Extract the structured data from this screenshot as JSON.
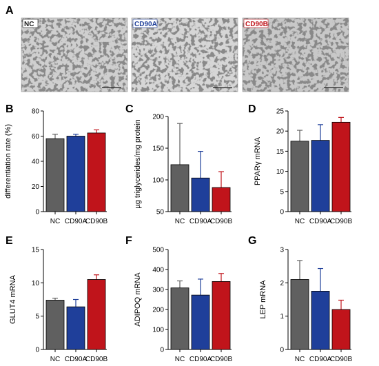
{
  "panel_A": {
    "label": "A",
    "images": [
      {
        "tag": "NC",
        "tag_color": "#1a1a1a"
      },
      {
        "tag": "CD90A",
        "tag_color": "#1f3f9a"
      },
      {
        "tag": "CD90B",
        "tag_color": "#c0141b"
      }
    ]
  },
  "colors": {
    "NC": "#606060",
    "CD90A": "#1f3f9a",
    "CD90B": "#c0141b"
  },
  "chart_data": [
    {
      "panel": "B",
      "type": "bar",
      "ylabel": "differentiation rate (%)",
      "categories": [
        "NC",
        "CD90A",
        "CD90B"
      ],
      "values": [
        58,
        60,
        62.5
      ],
      "errors": [
        3.5,
        1.5,
        2.5
      ],
      "ylim": [
        0,
        80
      ],
      "yticks": [
        0,
        20,
        40,
        60,
        80
      ]
    },
    {
      "panel": "C",
      "type": "bar",
      "ylabel": "µg triglycerides/mg protein",
      "categories": [
        "NC",
        "CD90A",
        "CD90B"
      ],
      "values": [
        124,
        103,
        88
      ],
      "errors": [
        65,
        42,
        25
      ],
      "ylim": [
        50,
        200
      ],
      "yticks": [
        50,
        100,
        150,
        200
      ]
    },
    {
      "panel": "D",
      "type": "bar",
      "ylabel": "PPARγ mRNA",
      "categories": [
        "NC",
        "CD90A",
        "CD90B"
      ],
      "values": [
        17.5,
        17.7,
        22.2
      ],
      "errors": [
        2.7,
        3.9,
        1.2
      ],
      "ylim": [
        0,
        25
      ],
      "yticks": [
        0,
        5,
        10,
        15,
        20,
        25
      ]
    },
    {
      "panel": "E",
      "type": "bar",
      "ylabel": "GLUT4 mRNA",
      "categories": [
        "NC",
        "CD90A",
        "CD90B"
      ],
      "values": [
        7.4,
        6.4,
        10.5
      ],
      "errors": [
        0.3,
        1.1,
        0.7
      ],
      "ylim": [
        0,
        15
      ],
      "yticks": [
        0,
        5,
        10,
        15
      ]
    },
    {
      "panel": "F",
      "type": "bar",
      "ylabel": "ADIPOQ mRNA",
      "categories": [
        "NC",
        "CD90A",
        "CD90B"
      ],
      "values": [
        308,
        272,
        340
      ],
      "errors": [
        35,
        80,
        40
      ],
      "ylim": [
        0,
        500
      ],
      "yticks": [
        0,
        100,
        200,
        300,
        400,
        500
      ]
    },
    {
      "panel": "G",
      "type": "bar",
      "ylabel": "LEP mRNA",
      "categories": [
        "NC",
        "CD90A",
        "CD90B"
      ],
      "values": [
        2.1,
        1.75,
        1.2
      ],
      "errors": [
        0.57,
        0.68,
        0.28
      ],
      "ylim": [
        0,
        3
      ],
      "yticks": [
        0,
        1,
        2,
        3
      ]
    }
  ]
}
